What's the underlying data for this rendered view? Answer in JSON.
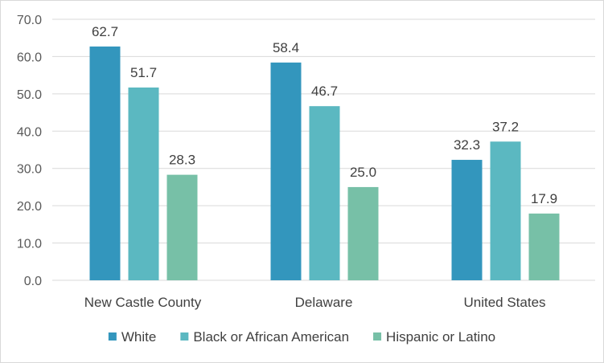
{
  "chart_data": {
    "type": "bar",
    "categories": [
      "New Castle County",
      "Delaware",
      "United States"
    ],
    "series": [
      {
        "name": "White",
        "values": [
          62.7,
          58.4,
          32.3
        ],
        "color": "#3396bd"
      },
      {
        "name": "Black or African American",
        "values": [
          51.7,
          46.7,
          37.2
        ],
        "color": "#5bb8c1"
      },
      {
        "name": "Hispanic or Latino",
        "values": [
          28.3,
          25.0,
          17.9
        ],
        "color": "#77c0a7"
      }
    ],
    "ylim": [
      0,
      70
    ],
    "yticks": [
      "0.0",
      "10.0",
      "20.0",
      "30.0",
      "40.0",
      "50.0",
      "60.0",
      "70.0"
    ],
    "title": "",
    "xlabel": "",
    "ylabel": "",
    "grid": true,
    "legend_position": "bottom",
    "gridline_color": "#d9d9d9"
  }
}
